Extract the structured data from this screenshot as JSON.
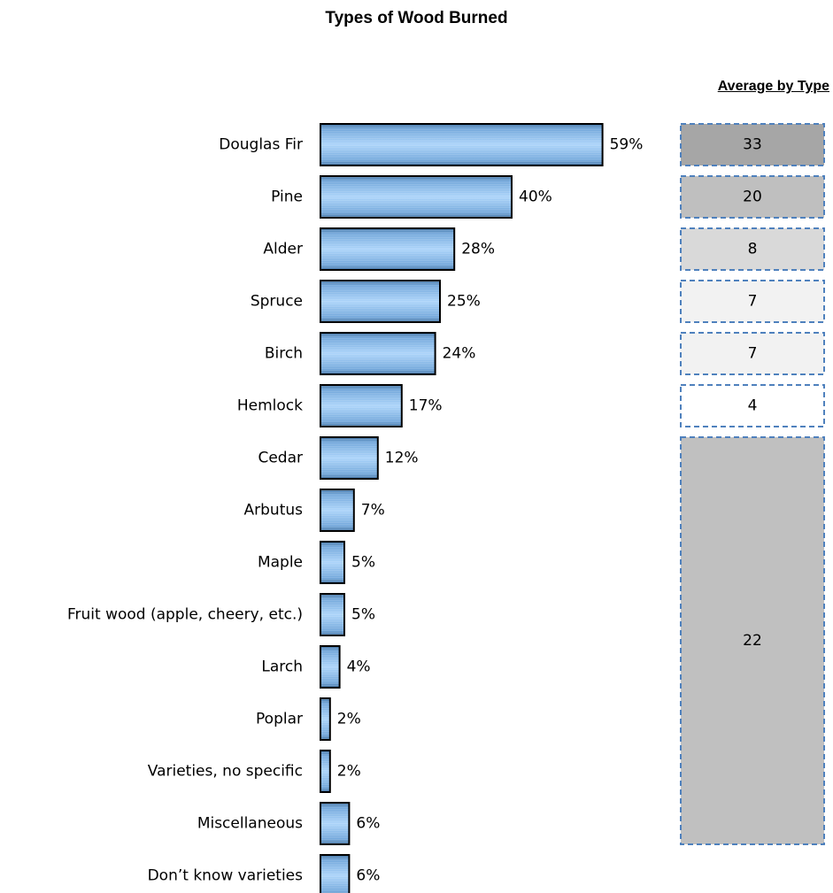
{
  "chart_data": {
    "type": "bar",
    "orientation": "horizontal",
    "title": "Types of Wood Burned",
    "categories": [
      "Douglas Fir",
      "Pine",
      "Alder",
      "Spruce",
      "Birch",
      "Hemlock",
      "Cedar",
      "Arbutus",
      "Maple",
      "Fruit wood (apple, cheery, etc.)",
      "Larch",
      "Poplar",
      "Varieties, no specific",
      "Miscellaneous",
      "Don’t know varieties"
    ],
    "values": [
      59,
      40,
      28,
      25,
      24,
      17,
      12,
      7,
      5,
      5,
      4,
      2,
      2,
      6,
      6
    ],
    "value_labels": [
      "59%",
      "40%",
      "28%",
      "25%",
      "24%",
      "17%",
      "12%",
      "7%",
      "5%",
      "5%",
      "4%",
      "2%",
      "2%",
      "6%",
      "6%"
    ],
    "xlim": [
      0,
      100
    ],
    "bar_color": "#8EC2F0",
    "bar_border_color": "#000000",
    "grid": false,
    "legend": "none",
    "side_panel": {
      "header": "Average by Type",
      "border_color": "#4F81BD",
      "boxes": [
        {
          "value": "33",
          "rows": [
            0
          ],
          "fill": "#A6A6A6"
        },
        {
          "value": "20",
          "rows": [
            1
          ],
          "fill": "#BFBFBF"
        },
        {
          "value": "8",
          "rows": [
            2
          ],
          "fill": "#D9D9D9"
        },
        {
          "value": "7",
          "rows": [
            3
          ],
          "fill": "#F2F2F2"
        },
        {
          "value": "7",
          "rows": [
            4
          ],
          "fill": "#F2F2F2"
        },
        {
          "value": "4",
          "rows": [
            5
          ],
          "fill": "#FFFFFF"
        },
        {
          "value": "22",
          "rows": [
            6,
            13
          ],
          "fill": "#C0C0C0"
        }
      ]
    }
  }
}
